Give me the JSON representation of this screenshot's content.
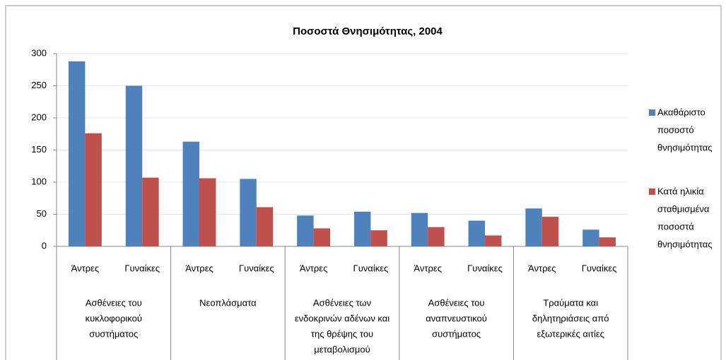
{
  "chart_data": {
    "type": "bar",
    "title": "Ποσοστά Θνησιμότητας, 2004",
    "categories": [
      "Άντρες",
      "Γυναίκες",
      "Άντρες",
      "Γυναίκες",
      "Άντρες",
      "Γυναίκες",
      "Άντρες",
      "Γυναίκες",
      "Άντρες",
      "Γυναίκες"
    ],
    "groups": [
      [
        "Ασθένειες του",
        "κυκλοφορικού",
        "συστήματος"
      ],
      [
        "Νεοπλάσματα"
      ],
      [
        "Ασθένειες των",
        "ενδοκρινών αδένων και",
        "της θρέψης του",
        "μεταβολισμού"
      ],
      [
        "Ασθένειες του",
        "αναπνευστικού",
        "συστήματος"
      ],
      [
        "Τραύματα και",
        "δηλητηριάσεις από",
        "εξωτερικές αιτίες"
      ]
    ],
    "series": [
      {
        "name": [
          "Ακαθάριστο",
          "ποσοστό",
          "θνησιμότητας"
        ],
        "color": "#4f81bd",
        "values": [
          288,
          250,
          163,
          105,
          48,
          54,
          52,
          40,
          59,
          26
        ]
      },
      {
        "name": [
          "Κατά ηλικία",
          "σταθμισμένα",
          "ποσοστά",
          "θνησιμότητας"
        ],
        "color": "#c0504d",
        "values": [
          176,
          107,
          106,
          61,
          28,
          25,
          30,
          17,
          46,
          14
        ]
      }
    ],
    "ylim": [
      0,
      300
    ],
    "yticks": [
      0,
      50,
      100,
      150,
      200,
      250,
      300
    ],
    "grid": true,
    "legend": "right"
  }
}
